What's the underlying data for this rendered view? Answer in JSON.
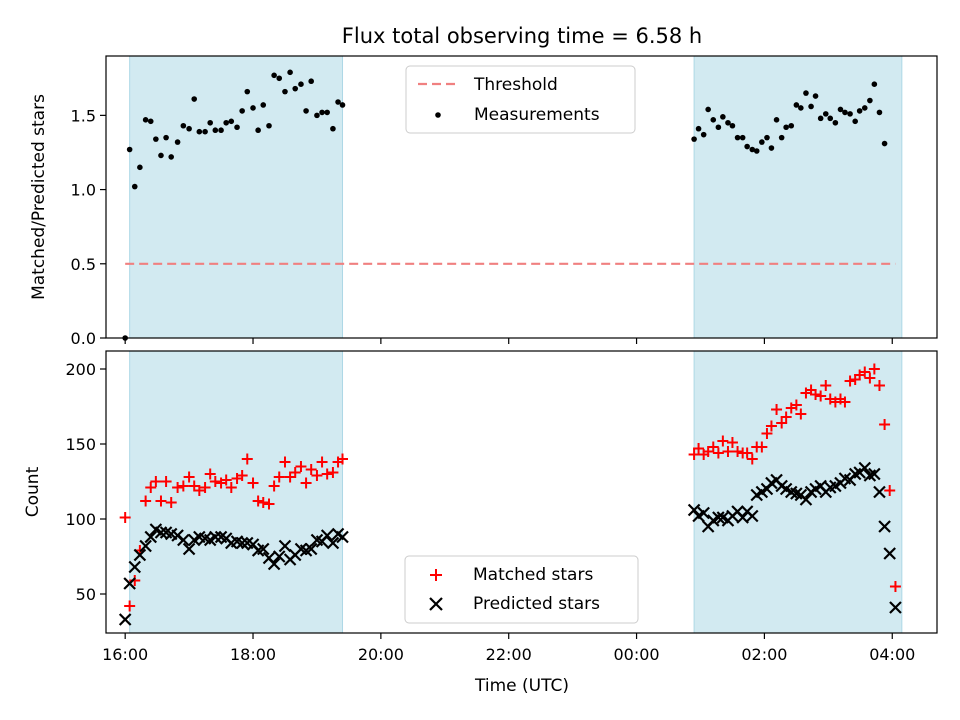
{
  "chart_data": {
    "title": "Flux total observing time = 6.58 h",
    "xlabel": "Time (UTC)",
    "x_unit": "hours since 16:00 UTC",
    "x_range": [
      -0.3,
      12.7
    ],
    "x_ticks": [
      {
        "x": 0,
        "label": "16:00"
      },
      {
        "x": 2,
        "label": "18:00"
      },
      {
        "x": 4,
        "label": "20:00"
      },
      {
        "x": 6,
        "label": "22:00"
      },
      {
        "x": 8,
        "label": "00:00"
      },
      {
        "x": 10,
        "label": "02:00"
      },
      {
        "x": 12,
        "label": "04:00"
      }
    ],
    "shaded_intervals": [
      [
        0.07,
        3.4
      ],
      [
        8.9,
        12.15
      ]
    ],
    "shade_color": "#add8e6",
    "top": {
      "type": "scatter",
      "ylabel": "Matched/Predicted stars",
      "ylim": [
        0,
        1.9
      ],
      "yticks": [
        {
          "y": 0.0,
          "label": "0.0"
        },
        {
          "y": 0.5,
          "label": "0.5"
        },
        {
          "y": 1.0,
          "label": "1.0"
        },
        {
          "y": 1.5,
          "label": "1.5"
        }
      ],
      "threshold": {
        "name": "Threshold",
        "value": 0.5,
        "color": "#f08080"
      },
      "series": [
        {
          "name": "Measurements",
          "color": "#000000",
          "marker": "dot",
          "points": [
            [
              0.0,
              0.0
            ],
            [
              0.07,
              1.27
            ],
            [
              0.15,
              1.02
            ],
            [
              0.23,
              1.15
            ],
            [
              0.32,
              1.47
            ],
            [
              0.4,
              1.46
            ],
            [
              0.48,
              1.34
            ],
            [
              0.56,
              1.23
            ],
            [
              0.64,
              1.35
            ],
            [
              0.72,
              1.22
            ],
            [
              0.82,
              1.32
            ],
            [
              0.91,
              1.43
            ],
            [
              1.0,
              1.41
            ],
            [
              1.08,
              1.61
            ],
            [
              1.16,
              1.39
            ],
            [
              1.25,
              1.39
            ],
            [
              1.33,
              1.45
            ],
            [
              1.41,
              1.4
            ],
            [
              1.5,
              1.4
            ],
            [
              1.58,
              1.45
            ],
            [
              1.66,
              1.46
            ],
            [
              1.75,
              1.42
            ],
            [
              1.83,
              1.53
            ],
            [
              1.91,
              1.66
            ],
            [
              2.0,
              1.55
            ],
            [
              2.08,
              1.4
            ],
            [
              2.16,
              1.57
            ],
            [
              2.25,
              1.43
            ],
            [
              2.33,
              1.77
            ],
            [
              2.41,
              1.75
            ],
            [
              2.5,
              1.66
            ],
            [
              2.58,
              1.79
            ],
            [
              2.66,
              1.68
            ],
            [
              2.75,
              1.71
            ],
            [
              2.83,
              1.53
            ],
            [
              2.91,
              1.73
            ],
            [
              3.0,
              1.5
            ],
            [
              3.08,
              1.52
            ],
            [
              3.16,
              1.52
            ],
            [
              3.25,
              1.41
            ],
            [
              3.33,
              1.59
            ],
            [
              3.4,
              1.57
            ],
            [
              8.9,
              1.34
            ],
            [
              8.97,
              1.41
            ],
            [
              9.05,
              1.37
            ],
            [
              9.12,
              1.54
            ],
            [
              9.2,
              1.47
            ],
            [
              9.28,
              1.42
            ],
            [
              9.35,
              1.49
            ],
            [
              9.43,
              1.45
            ],
            [
              9.5,
              1.43
            ],
            [
              9.58,
              1.35
            ],
            [
              9.66,
              1.35
            ],
            [
              9.73,
              1.29
            ],
            [
              9.81,
              1.27
            ],
            [
              9.88,
              1.26
            ],
            [
              9.96,
              1.32
            ],
            [
              10.04,
              1.35
            ],
            [
              10.11,
              1.28
            ],
            [
              10.19,
              1.47
            ],
            [
              10.27,
              1.35
            ],
            [
              10.34,
              1.42
            ],
            [
              10.42,
              1.43
            ],
            [
              10.5,
              1.57
            ],
            [
              10.57,
              1.55
            ],
            [
              10.65,
              1.65
            ],
            [
              10.73,
              1.56
            ],
            [
              10.8,
              1.63
            ],
            [
              10.88,
              1.48
            ],
            [
              10.96,
              1.51
            ],
            [
              11.03,
              1.48
            ],
            [
              11.11,
              1.45
            ],
            [
              11.19,
              1.54
            ],
            [
              11.26,
              1.52
            ],
            [
              11.34,
              1.51
            ],
            [
              11.42,
              1.46
            ],
            [
              11.49,
              1.53
            ],
            [
              11.57,
              1.55
            ],
            [
              11.65,
              1.6
            ],
            [
              11.72,
              1.71
            ],
            [
              11.8,
              1.52
            ],
            [
              11.88,
              1.31
            ]
          ]
        }
      ],
      "legend": {
        "placement": "top-center",
        "entries": [
          "Threshold",
          "Measurements"
        ]
      }
    },
    "bottom": {
      "type": "scatter",
      "ylabel": "Count",
      "ylim": [
        24,
        212
      ],
      "yticks": [
        {
          "y": 50,
          "label": "50"
        },
        {
          "y": 100,
          "label": "100"
        },
        {
          "y": 150,
          "label": "150"
        },
        {
          "y": 200,
          "label": "200"
        }
      ],
      "series": [
        {
          "name": "Matched stars",
          "color": "#ff0000",
          "marker": "plus",
          "points": [
            [
              0.0,
              101
            ],
            [
              0.07,
              42
            ],
            [
              0.15,
              59
            ],
            [
              0.23,
              79
            ],
            [
              0.32,
              112
            ],
            [
              0.4,
              121
            ],
            [
              0.48,
              125
            ],
            [
              0.56,
              112
            ],
            [
              0.64,
              125
            ],
            [
              0.72,
              111
            ],
            [
              0.82,
              121
            ],
            [
              0.91,
              122
            ],
            [
              1.0,
              128
            ],
            [
              1.08,
              122
            ],
            [
              1.16,
              119
            ],
            [
              1.25,
              121
            ],
            [
              1.33,
              130
            ],
            [
              1.41,
              125
            ],
            [
              1.5,
              124
            ],
            [
              1.58,
              126
            ],
            [
              1.66,
              121
            ],
            [
              1.75,
              127
            ],
            [
              1.83,
              129
            ],
            [
              1.91,
              140
            ],
            [
              2.0,
              124
            ],
            [
              2.08,
              112
            ],
            [
              2.16,
              111
            ],
            [
              2.25,
              110
            ],
            [
              2.33,
              122
            ],
            [
              2.41,
              128
            ],
            [
              2.5,
              138
            ],
            [
              2.58,
              128
            ],
            [
              2.66,
              131
            ],
            [
              2.75,
              135
            ],
            [
              2.83,
              124
            ],
            [
              2.91,
              133
            ],
            [
              3.0,
              129
            ],
            [
              3.08,
              138
            ],
            [
              3.16,
              130
            ],
            [
              3.25,
              131
            ],
            [
              3.33,
              138
            ],
            [
              3.4,
              140
            ],
            [
              8.9,
              143
            ],
            [
              8.97,
              147
            ],
            [
              9.05,
              143
            ],
            [
              9.12,
              145
            ],
            [
              9.2,
              148
            ],
            [
              9.28,
              144
            ],
            [
              9.35,
              152
            ],
            [
              9.43,
              145
            ],
            [
              9.5,
              151
            ],
            [
              9.58,
              145
            ],
            [
              9.66,
              144
            ],
            [
              9.73,
              144
            ],
            [
              9.81,
              140
            ],
            [
              9.88,
              148
            ],
            [
              9.96,
              148
            ],
            [
              10.04,
              157
            ],
            [
              10.11,
              162
            ],
            [
              10.19,
              173
            ],
            [
              10.27,
              164
            ],
            [
              10.34,
              168
            ],
            [
              10.42,
              174
            ],
            [
              10.5,
              176
            ],
            [
              10.57,
              170
            ],
            [
              10.65,
              184
            ],
            [
              10.73,
              186
            ],
            [
              10.8,
              183
            ],
            [
              10.88,
              182
            ],
            [
              10.96,
              189
            ],
            [
              11.03,
              180
            ],
            [
              11.11,
              178
            ],
            [
              11.19,
              180
            ],
            [
              11.26,
              178
            ],
            [
              11.34,
              192
            ],
            [
              11.42,
              193
            ],
            [
              11.49,
              196
            ],
            [
              11.57,
              198
            ],
            [
              11.65,
              194
            ],
            [
              11.72,
              200
            ],
            [
              11.8,
              189
            ],
            [
              11.88,
              163
            ],
            [
              11.96,
              119
            ],
            [
              12.05,
              55
            ]
          ]
        },
        {
          "name": "Predicted stars",
          "color": "#000000",
          "marker": "x",
          "points": [
            [
              0.0,
              33
            ],
            [
              0.07,
              57
            ],
            [
              0.15,
              68
            ],
            [
              0.23,
              76
            ],
            [
              0.32,
              82
            ],
            [
              0.4,
              88
            ],
            [
              0.48,
              93
            ],
            [
              0.56,
              91
            ],
            [
              0.64,
              91
            ],
            [
              0.72,
              90
            ],
            [
              0.82,
              89
            ],
            [
              0.91,
              86
            ],
            [
              1.0,
              80
            ],
            [
              1.08,
              86
            ],
            [
              1.16,
              88
            ],
            [
              1.25,
              87
            ],
            [
              1.33,
              86
            ],
            [
              1.41,
              88
            ],
            [
              1.5,
              88
            ],
            [
              1.58,
              87
            ],
            [
              1.66,
              84
            ],
            [
              1.75,
              85
            ],
            [
              1.83,
              84
            ],
            [
              1.91,
              84
            ],
            [
              2.0,
              83
            ],
            [
              2.08,
              79
            ],
            [
              2.16,
              80
            ],
            [
              2.25,
              74
            ],
            [
              2.33,
              70
            ],
            [
              2.41,
              75
            ],
            [
              2.5,
              82
            ],
            [
              2.58,
              73
            ],
            [
              2.66,
              76
            ],
            [
              2.75,
              80
            ],
            [
              2.83,
              79
            ],
            [
              2.91,
              80
            ],
            [
              3.0,
              86
            ],
            [
              3.08,
              85
            ],
            [
              3.16,
              89
            ],
            [
              3.25,
              84
            ],
            [
              3.33,
              90
            ],
            [
              3.4,
              88
            ],
            [
              8.9,
              106
            ],
            [
              8.97,
              102
            ],
            [
              9.05,
              104
            ],
            [
              9.12,
              95
            ],
            [
              9.2,
              99
            ],
            [
              9.28,
              101
            ],
            [
              9.35,
              101
            ],
            [
              9.43,
              99
            ],
            [
              9.5,
              102
            ],
            [
              9.58,
              105
            ],
            [
              9.66,
              101
            ],
            [
              9.73,
              105
            ],
            [
              9.81,
              102
            ],
            [
              9.88,
              116
            ],
            [
              9.96,
              118
            ],
            [
              10.04,
              120
            ],
            [
              10.11,
              124
            ],
            [
              10.19,
              126
            ],
            [
              10.27,
              122
            ],
            [
              10.34,
              120
            ],
            [
              10.42,
              118
            ],
            [
              10.5,
              117
            ],
            [
              10.57,
              116
            ],
            [
              10.65,
              113
            ],
            [
              10.73,
              118
            ],
            [
              10.8,
              120
            ],
            [
              10.88,
              122
            ],
            [
              10.96,
              118
            ],
            [
              11.03,
              121
            ],
            [
              11.11,
              122
            ],
            [
              11.19,
              124
            ],
            [
              11.26,
              127
            ],
            [
              11.34,
              126
            ],
            [
              11.42,
              130
            ],
            [
              11.49,
              131
            ],
            [
              11.57,
              134
            ],
            [
              11.65,
              129
            ],
            [
              11.72,
              130
            ],
            [
              11.8,
              118
            ],
            [
              11.88,
              95
            ],
            [
              11.96,
              77
            ],
            [
              12.05,
              41
            ]
          ]
        }
      ],
      "legend": {
        "placement": "bottom-center",
        "entries": [
          "Matched stars",
          "Predicted stars"
        ]
      }
    }
  }
}
